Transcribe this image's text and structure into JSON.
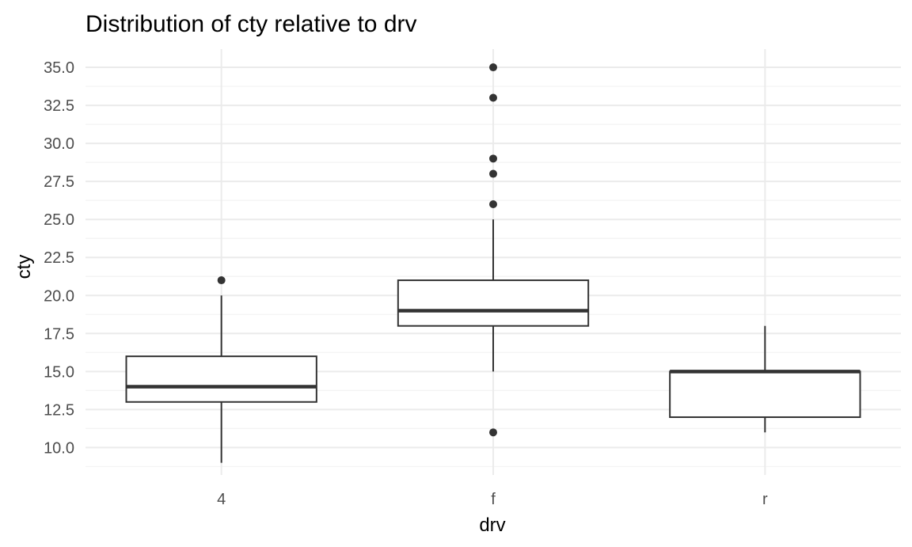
{
  "chart_data": {
    "type": "boxplot",
    "title": "Distribution of cty relative to drv",
    "xlabel": "drv",
    "ylabel": "cty",
    "categories": [
      "4",
      "f",
      "r"
    ],
    "ylim": [
      8.2,
      36.2
    ],
    "y_ticks": [
      10.0,
      12.5,
      15.0,
      17.5,
      20.0,
      22.5,
      25.0,
      27.5,
      30.0,
      32.5,
      35.0
    ],
    "y_tick_labels": [
      "10.0",
      "12.5",
      "15.0",
      "17.5",
      "20.0",
      "22.5",
      "25.0",
      "27.5",
      "30.0",
      "32.5",
      "35.0"
    ],
    "grid": true,
    "boxes": [
      {
        "category": "4",
        "whisker_low": 9,
        "q1": 13,
        "median": 14,
        "q3": 16,
        "whisker_high": 20,
        "outliers": [
          21
        ]
      },
      {
        "category": "f",
        "whisker_low": 15,
        "q1": 18,
        "median": 19,
        "q3": 21,
        "whisker_high": 25,
        "outliers": [
          11,
          26,
          28,
          29,
          33,
          35
        ]
      },
      {
        "category": "r",
        "whisker_low": 11,
        "q1": 12,
        "median": 15,
        "q3": 15,
        "whisker_high": 18,
        "outliers": []
      }
    ],
    "colors": {
      "box_line": "#333333",
      "grid": "#ebebeb",
      "tick_text": "#4d4d4d"
    }
  }
}
